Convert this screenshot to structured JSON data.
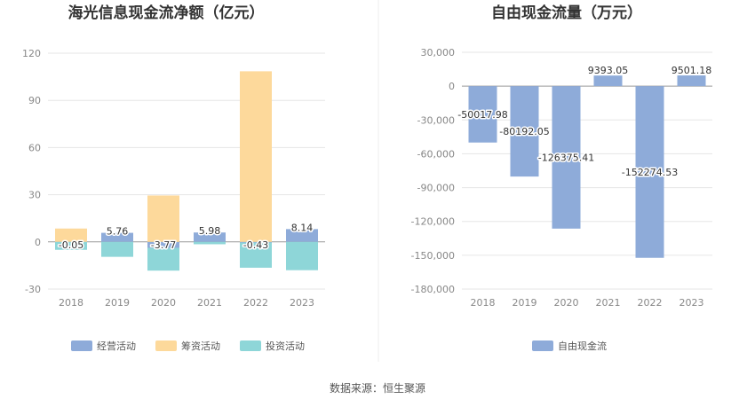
{
  "source_text": "数据来源：恒生聚源",
  "chart_data": [
    {
      "type": "bar",
      "title": "海光信息现金流净额（亿元）",
      "categories": [
        "2018",
        "2019",
        "2020",
        "2021",
        "2022",
        "2023"
      ],
      "ylim": [
        -30,
        120
      ],
      "yticks": [
        -30,
        0,
        30,
        60,
        90,
        120
      ],
      "grid": true,
      "legend_position": "bottom",
      "series": [
        {
          "name": "经营活动",
          "color": "#8eabd9",
          "values": [
            -0.05,
            5.76,
            -3.77,
            5.98,
            -0.43,
            8.14
          ],
          "labels": [
            "-0.05",
            "5.76",
            "-3.77",
            "5.98",
            "-0.43",
            "8.14"
          ]
        },
        {
          "name": "筹资活动",
          "color": "#fdd99b",
          "values": [
            8.5,
            0.0,
            29.5,
            0.0,
            108.5,
            0.0
          ]
        },
        {
          "name": "投资活动",
          "color": "#8ed6d8",
          "values": [
            -5.0,
            -9.5,
            -14.5,
            -1.5,
            -16.0,
            -18.0
          ]
        }
      ]
    },
    {
      "type": "bar",
      "title": "自由现金流量（万元）",
      "categories": [
        "2018",
        "2019",
        "2020",
        "2021",
        "2022",
        "2023"
      ],
      "ylim": [
        -180000,
        30000
      ],
      "yticks": [
        -180000,
        -150000,
        -120000,
        -90000,
        -60000,
        -30000,
        0,
        30000
      ],
      "ytick_labels": [
        "-180,000",
        "-150,000",
        "-120,000",
        "-90,000",
        "-60,000",
        "-30,000",
        "0",
        "30,000"
      ],
      "grid": true,
      "legend_position": "bottom",
      "series": [
        {
          "name": "自由现金流",
          "color": "#8eabd9",
          "values": [
            -50017.98,
            -80192.05,
            -126375.41,
            9393.05,
            -152274.53,
            9501.18
          ],
          "labels": [
            "-50017.98",
            "-80192.05",
            "-126375.41",
            "9393.05",
            "-152274.53",
            "9501.18"
          ]
        }
      ]
    }
  ]
}
